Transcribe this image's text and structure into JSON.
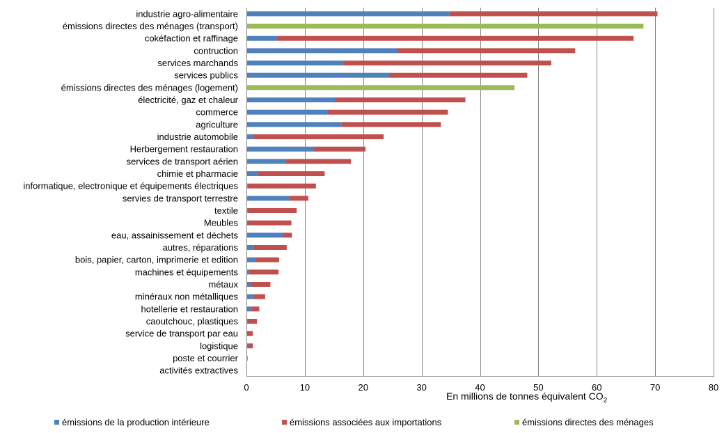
{
  "chart_data": {
    "type": "bar",
    "orientation": "horizontal",
    "stacked": true,
    "title": "",
    "xlabel_prefix": "En millions de tonnes  équivalent  CO",
    "xlabel_subscript": "2",
    "xlim": [
      0,
      80
    ],
    "xticks": [
      0,
      10,
      20,
      30,
      40,
      50,
      60,
      70,
      80
    ],
    "grid": "vertical",
    "legend_position": "bottom",
    "categories": [
      "industrie agro-alimentaire",
      "émissions directes des ménages (transport)",
      "cokéfaction et raffinage",
      "contruction",
      "services marchands",
      "services publics",
      "émissions directes des ménages (logement)",
      "électricité, gaz et chaleur",
      "commerce",
      "agriculture",
      "industrie automobile",
      "Herbergement restauration",
      "services de transport aérien",
      "chimie et pharmacie ",
      "informatique, electronique et équipements électriques",
      "servies de transport terrestre",
      "textile",
      "Meubles",
      "eau, assainissement et déchets",
      "autres, réparations",
      "bois, papier, carton, imprimerie et edition",
      "machines et équipements",
      "métaux",
      "minéraux non métalliques",
      "hotellerie et restauration",
      "caoutchouc, plastiques",
      "service de transport par eau",
      "logistique",
      "poste et courrier",
      "activités extractives"
    ],
    "series": [
      {
        "name": "émissions de la production intérieure",
        "color": "#4F81BD",
        "values": [
          34.8,
          0,
          5.2,
          25.8,
          16.5,
          24.5,
          0,
          15.2,
          14.0,
          16.3,
          1.1,
          11.5,
          6.8,
          2.0,
          0.2,
          7.3,
          0.2,
          0.3,
          6.2,
          1.3,
          1.5,
          0.4,
          0.7,
          1.2,
          0.8,
          0.3,
          0.1,
          0.3,
          0.05,
          0.0
        ]
      },
      {
        "name": "émissions associées aux importations",
        "color": "#C0504D",
        "values": [
          35.6,
          0,
          61.1,
          30.5,
          35.7,
          23.6,
          0,
          22.3,
          20.5,
          17.0,
          22.4,
          8.9,
          11.1,
          11.4,
          11.7,
          3.3,
          8.4,
          7.4,
          1.6,
          5.6,
          4.1,
          5.1,
          3.4,
          2.0,
          1.4,
          1.5,
          1.0,
          0.8,
          0.15,
          0.0
        ]
      },
      {
        "name": "émissions directes des ménages",
        "color": "#9BBB59",
        "values": [
          0,
          68.0,
          0,
          0,
          0,
          0,
          45.9,
          0,
          0,
          0,
          0,
          0,
          0,
          0,
          0,
          0,
          0,
          0,
          0,
          0,
          0,
          0,
          0,
          0,
          0,
          0,
          0,
          0,
          0,
          0
        ]
      }
    ]
  }
}
